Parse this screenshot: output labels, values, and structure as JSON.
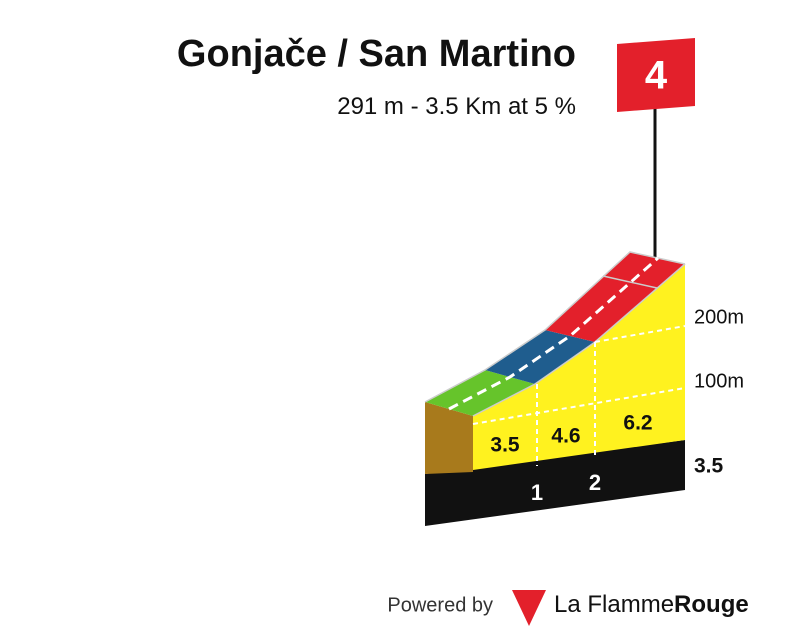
{
  "header": {
    "title": "Gonjače / San Martino",
    "subtitle": "291 m - 3.5 Km at 5 %"
  },
  "category": "4",
  "segments": [
    {
      "gradient": "3.5"
    },
    {
      "gradient": "4.6"
    },
    {
      "gradient": "6.2"
    }
  ],
  "km_markers": [
    "1",
    "2"
  ],
  "elevation_labels": [
    "200m",
    "100m"
  ],
  "total_km": "3.5",
  "footer": {
    "powered": "Powered by",
    "brand_light": "La Flamme",
    "brand_bold": "Rouge"
  }
}
